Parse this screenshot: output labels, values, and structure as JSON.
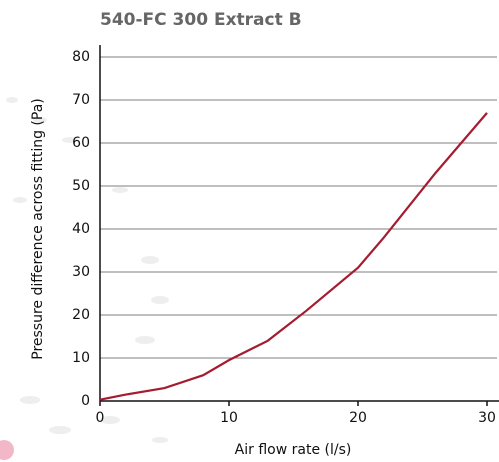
{
  "chart_data": {
    "type": "line",
    "title": "540-FC 300 Extract B",
    "x_label": "Air flow rate (l/s)",
    "y_label": "Pressure difference across fitting (Pa)",
    "x": [
      0,
      2,
      5,
      8,
      10,
      13,
      16,
      20,
      22,
      24,
      26,
      28,
      30
    ],
    "values": [
      0.3,
      1.5,
      3,
      6,
      9.5,
      14,
      21,
      31,
      38,
      45.5,
      53,
      60,
      67
    ],
    "color": "#a51c30",
    "xlim": [
      0,
      30
    ],
    "xticks": [
      0,
      10,
      20,
      30
    ],
    "ylim": [
      0,
      80
    ],
    "yticks": [
      0,
      10,
      20,
      30,
      40,
      50,
      60,
      70,
      80
    ],
    "grid": true
  }
}
